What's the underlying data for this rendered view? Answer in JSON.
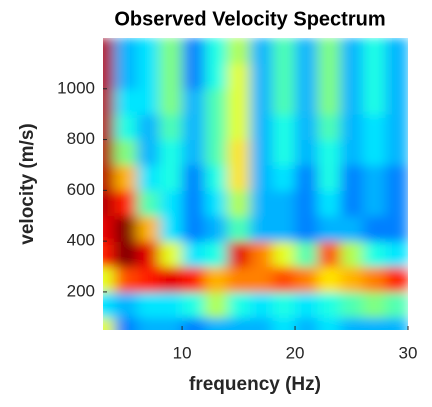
{
  "chart_data": {
    "type": "heatmap",
    "title": "Observed Velocity Spectrum",
    "x_label": "frequency (Hz)",
    "y_label": "velocity (m/s)",
    "colormap": "jet",
    "x": [
      3,
      5,
      7,
      9,
      11,
      13,
      15,
      17,
      19,
      21,
      23,
      25,
      27,
      29
    ],
    "y": [
      50,
      150,
      250,
      350,
      450,
      550,
      650,
      750,
      850,
      950,
      1050,
      1150
    ],
    "z": [
      [
        0.6,
        0.25,
        0.3,
        0.3,
        0.25,
        0.3,
        0.3,
        0.3,
        0.35,
        0.3,
        0.35,
        0.3,
        0.3,
        0.3
      ],
      [
        0.35,
        0.3,
        0.35,
        0.35,
        0.4,
        0.55,
        0.4,
        0.35,
        0.4,
        0.35,
        0.4,
        0.45,
        0.5,
        0.45
      ],
      [
        0.6,
        0.8,
        0.85,
        0.9,
        0.85,
        0.7,
        0.75,
        0.75,
        0.8,
        0.75,
        0.65,
        0.7,
        0.75,
        0.85
      ],
      [
        0.85,
        1.0,
        0.9,
        0.6,
        0.35,
        0.4,
        0.9,
        0.75,
        0.6,
        0.45,
        0.8,
        0.55,
        0.4,
        0.35
      ],
      [
        0.9,
        1.0,
        0.7,
        0.35,
        0.25,
        0.3,
        0.45,
        0.3,
        0.3,
        0.25,
        0.3,
        0.3,
        0.25,
        0.25
      ],
      [
        0.95,
        0.85,
        0.45,
        0.35,
        0.25,
        0.35,
        0.55,
        0.3,
        0.3,
        0.25,
        0.35,
        0.25,
        0.3,
        0.25
      ],
      [
        0.95,
        0.7,
        0.35,
        0.4,
        0.25,
        0.4,
        0.65,
        0.3,
        0.35,
        0.25,
        0.4,
        0.25,
        0.3,
        0.25
      ],
      [
        0.95,
        0.5,
        0.3,
        0.4,
        0.3,
        0.45,
        0.65,
        0.3,
        0.4,
        0.3,
        0.4,
        0.3,
        0.35,
        0.3
      ],
      [
        0.95,
        0.4,
        0.3,
        0.45,
        0.3,
        0.45,
        0.6,
        0.3,
        0.4,
        0.3,
        0.45,
        0.3,
        0.35,
        0.3
      ],
      [
        0.95,
        0.35,
        0.35,
        0.5,
        0.3,
        0.45,
        0.6,
        0.3,
        0.45,
        0.3,
        0.5,
        0.3,
        0.4,
        0.3
      ],
      [
        0.95,
        0.3,
        0.35,
        0.5,
        0.25,
        0.4,
        0.6,
        0.3,
        0.45,
        0.3,
        0.5,
        0.3,
        0.4,
        0.3
      ],
      [
        0.95,
        0.3,
        0.35,
        0.5,
        0.25,
        0.4,
        0.55,
        0.3,
        0.45,
        0.3,
        0.5,
        0.3,
        0.4,
        0.3
      ]
    ],
    "xlim": [
      3,
      30
    ],
    "ylim": [
      50,
      1200
    ],
    "xticks": [
      10,
      20,
      30
    ],
    "yticks": [
      200,
      400,
      600,
      800,
      1000
    ]
  }
}
